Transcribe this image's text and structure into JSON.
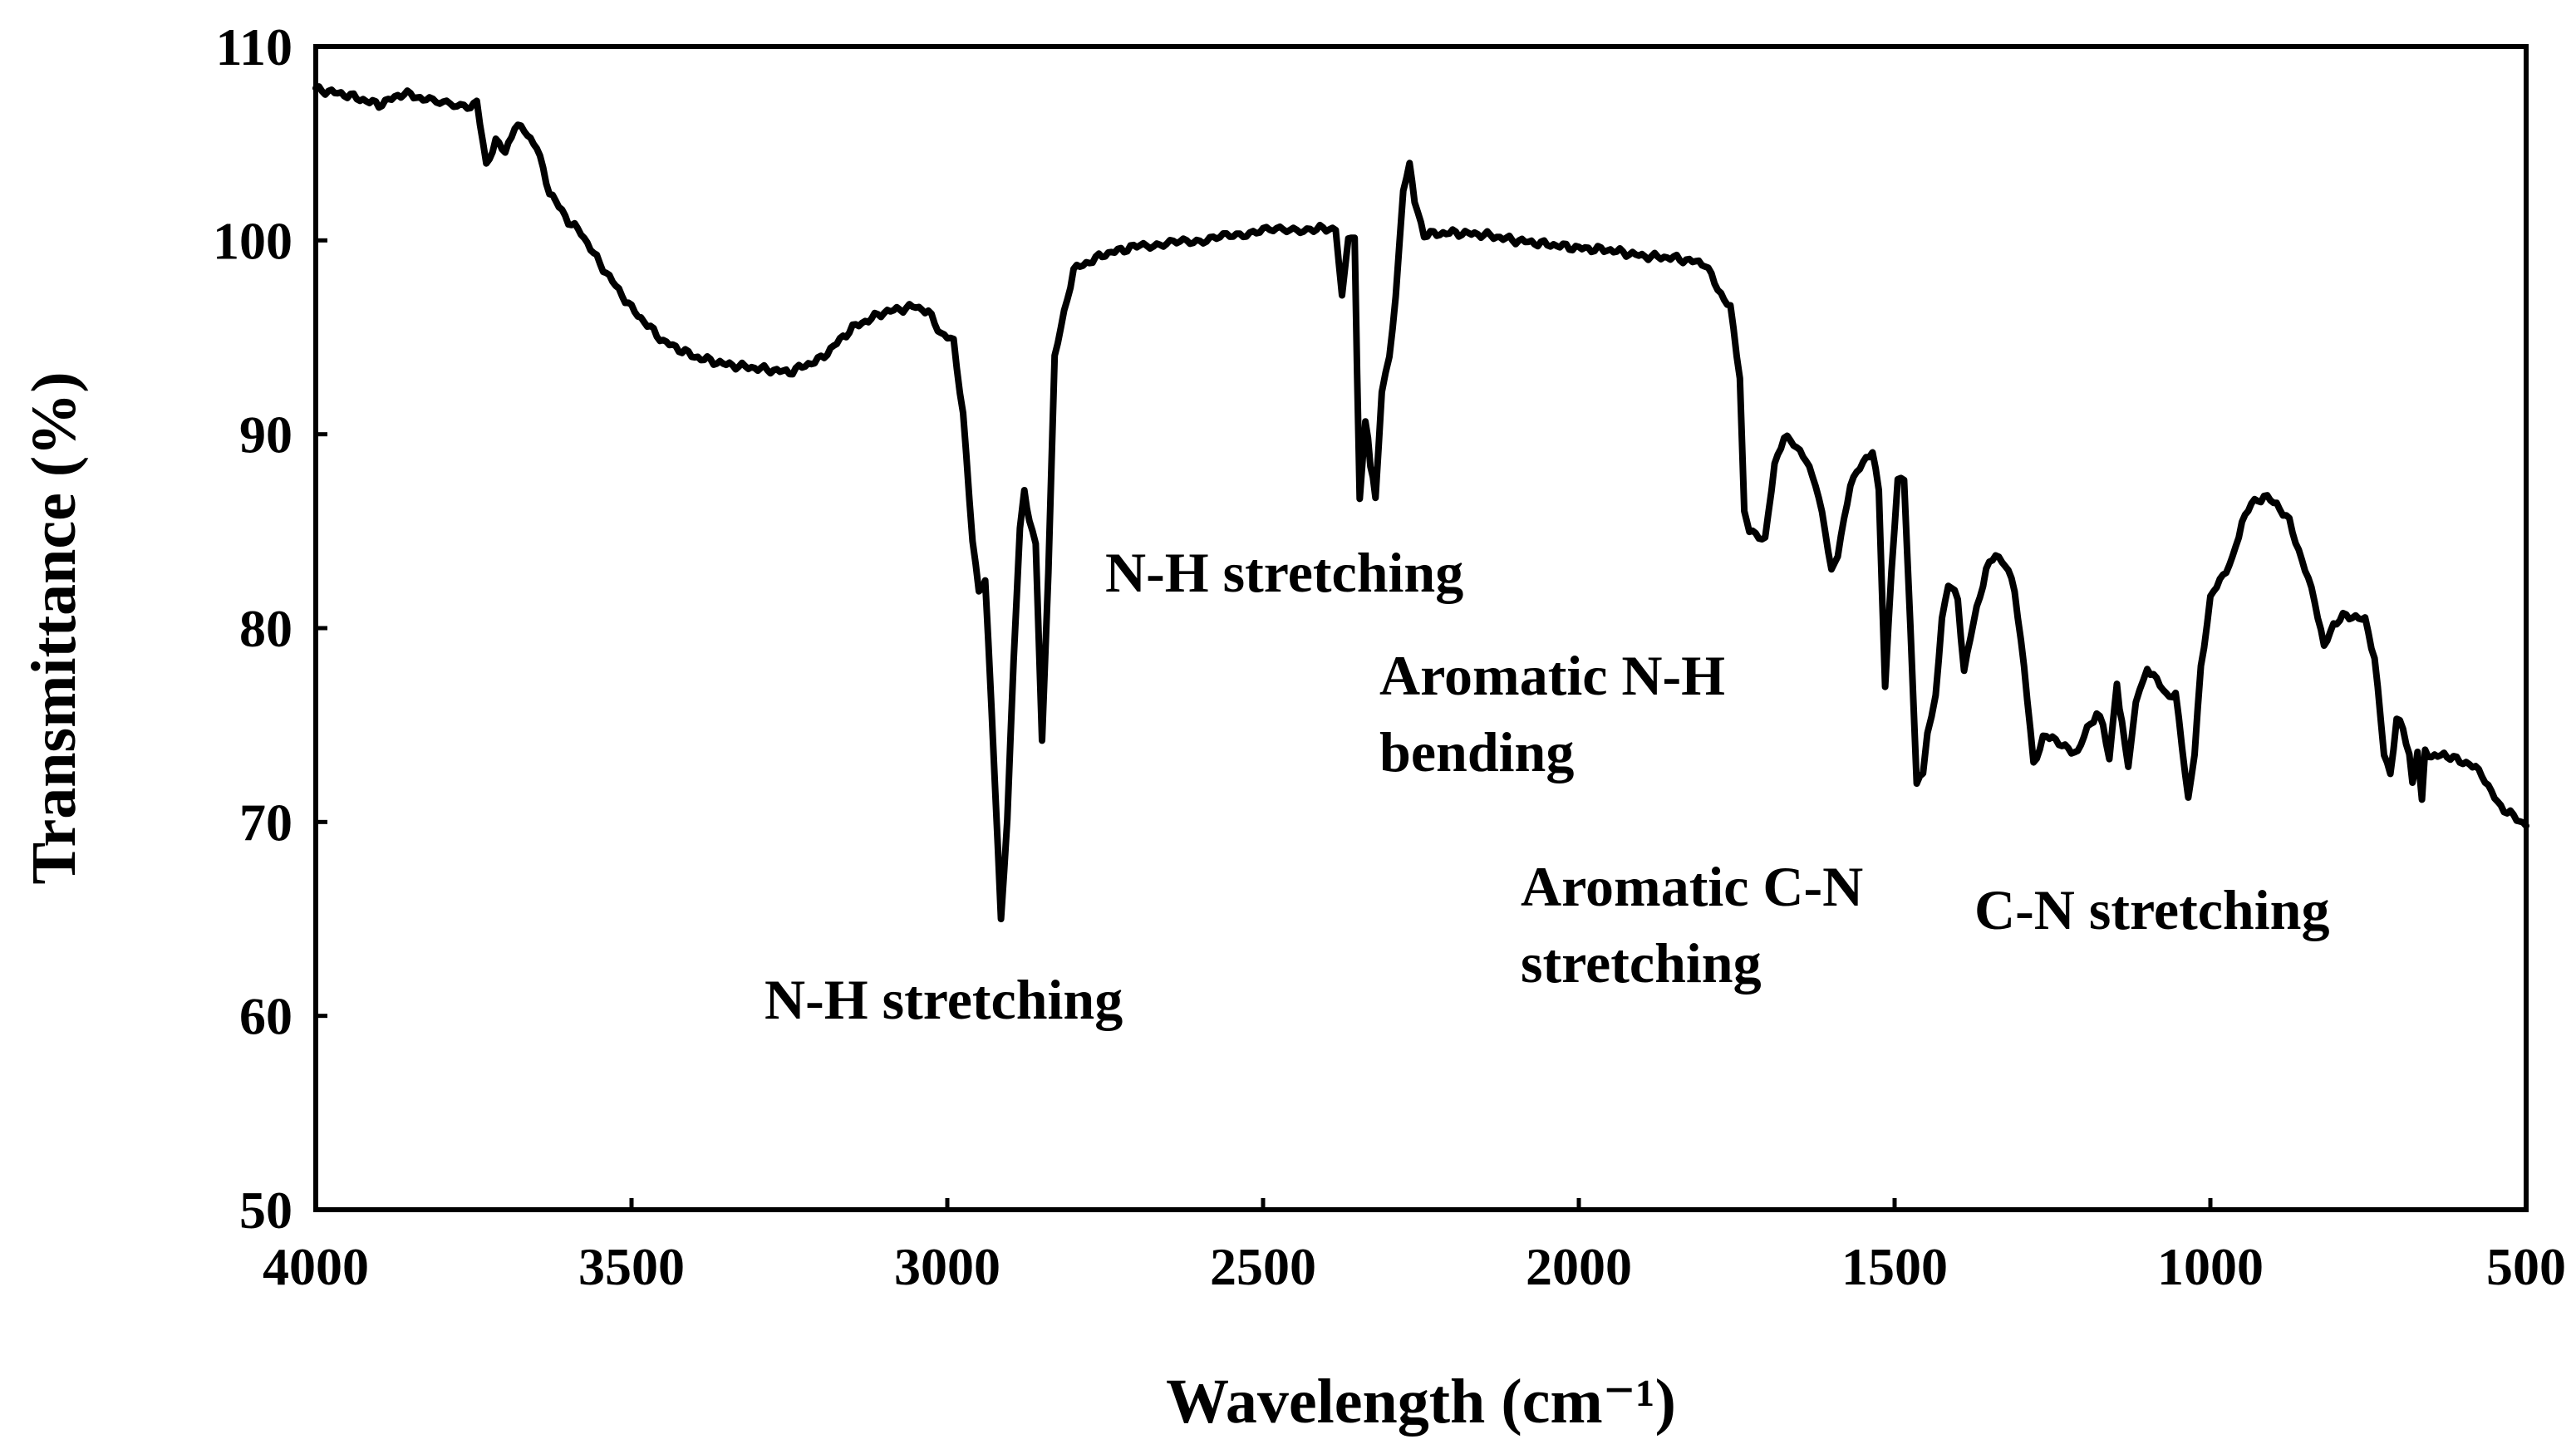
{
  "chart_data": {
    "type": "line",
    "title": "",
    "xlabel": "Wavelength (cm⁻¹)",
    "ylabel": "Transmittance (%)",
    "xlim": [
      4000,
      500
    ],
    "ylim": [
      50,
      110
    ],
    "x_ticks": [
      4000,
      3500,
      3000,
      2500,
      2000,
      1500,
      1000,
      500
    ],
    "y_ticks": [
      50,
      60,
      70,
      80,
      90,
      100,
      110
    ],
    "grid": false,
    "legend": "none",
    "colors": {
      "line": "#000000",
      "axis": "#000000",
      "background": "#ffffff"
    },
    "series": [
      {
        "name": "IR spectrum",
        "points": [
          [
            4000,
            107.8
          ],
          [
            3950,
            107.5
          ],
          [
            3900,
            107.0
          ],
          [
            3860,
            107.6
          ],
          [
            3820,
            107.2
          ],
          [
            3760,
            106.8
          ],
          [
            3745,
            107.2
          ],
          [
            3730,
            103.8
          ],
          [
            3715,
            105.2
          ],
          [
            3700,
            104.5
          ],
          [
            3685,
            105.9
          ],
          [
            3670,
            105.7
          ],
          [
            3650,
            104.8
          ],
          [
            3630,
            102.5
          ],
          [
            3600,
            101.0
          ],
          [
            3580,
            100.4
          ],
          [
            3550,
            98.8
          ],
          [
            3500,
            96.5
          ],
          [
            3450,
            94.8
          ],
          [
            3400,
            94.0
          ],
          [
            3350,
            93.6
          ],
          [
            3300,
            93.4
          ],
          [
            3250,
            93.2
          ],
          [
            3200,
            93.9
          ],
          [
            3150,
            95.5
          ],
          [
            3100,
            96.3
          ],
          [
            3050,
            96.6
          ],
          [
            3030,
            96.3
          ],
          [
            3010,
            95.2
          ],
          [
            2990,
            94.8
          ],
          [
            2975,
            91.0
          ],
          [
            2960,
            84.5
          ],
          [
            2950,
            82.0
          ],
          [
            2940,
            82.3
          ],
          [
            2930,
            76.0
          ],
          [
            2915,
            65.0
          ],
          [
            2905,
            70.0
          ],
          [
            2895,
            78.5
          ],
          [
            2885,
            85.0
          ],
          [
            2878,
            87.0
          ],
          [
            2870,
            85.5
          ],
          [
            2860,
            84.5
          ],
          [
            2850,
            74.0
          ],
          [
            2840,
            83.0
          ],
          [
            2830,
            94.0
          ],
          [
            2800,
            98.5
          ],
          [
            2750,
            99.3
          ],
          [
            2700,
            99.7
          ],
          [
            2600,
            100.0
          ],
          [
            2500,
            100.5
          ],
          [
            2420,
            100.6
          ],
          [
            2385,
            100.6
          ],
          [
            2375,
            97.0
          ],
          [
            2365,
            100.3
          ],
          [
            2355,
            100.0
          ],
          [
            2347,
            86.5
          ],
          [
            2338,
            90.8
          ],
          [
            2330,
            88.5
          ],
          [
            2322,
            86.8
          ],
          [
            2312,
            92.0
          ],
          [
            2300,
            94.0
          ],
          [
            2290,
            97.0
          ],
          [
            2278,
            102.5
          ],
          [
            2268,
            104.0
          ],
          [
            2260,
            102.0
          ],
          [
            2245,
            100.3
          ],
          [
            2200,
            100.4
          ],
          [
            2150,
            100.3
          ],
          [
            2100,
            100.0
          ],
          [
            2050,
            99.8
          ],
          [
            2000,
            99.6
          ],
          [
            1950,
            99.5
          ],
          [
            1900,
            99.2
          ],
          [
            1850,
            99.1
          ],
          [
            1800,
            98.8
          ],
          [
            1780,
            97.5
          ],
          [
            1760,
            96.5
          ],
          [
            1745,
            93.0
          ],
          [
            1738,
            86.0
          ],
          [
            1730,
            85.0
          ],
          [
            1715,
            84.8
          ],
          [
            1705,
            84.5
          ],
          [
            1690,
            88.5
          ],
          [
            1675,
            89.8
          ],
          [
            1660,
            89.6
          ],
          [
            1640,
            88.6
          ],
          [
            1625,
            87.5
          ],
          [
            1610,
            85.0
          ],
          [
            1600,
            83.0
          ],
          [
            1590,
            83.8
          ],
          [
            1580,
            85.5
          ],
          [
            1570,
            87.5
          ],
          [
            1550,
            88.5
          ],
          [
            1535,
            89.2
          ],
          [
            1525,
            87.0
          ],
          [
            1515,
            77.0
          ],
          [
            1505,
            83.0
          ],
          [
            1495,
            87.5
          ],
          [
            1485,
            87.8
          ],
          [
            1475,
            80.0
          ],
          [
            1465,
            72.0
          ],
          [
            1455,
            72.5
          ],
          [
            1448,
            74.5
          ],
          [
            1435,
            76.5
          ],
          [
            1425,
            80.5
          ],
          [
            1415,
            82.3
          ],
          [
            1400,
            81.5
          ],
          [
            1390,
            77.8
          ],
          [
            1380,
            79.5
          ],
          [
            1370,
            81.0
          ],
          [
            1355,
            83.0
          ],
          [
            1340,
            83.8
          ],
          [
            1325,
            83.3
          ],
          [
            1310,
            82.0
          ],
          [
            1295,
            78.0
          ],
          [
            1280,
            73.0
          ],
          [
            1265,
            74.3
          ],
          [
            1250,
            74.4
          ],
          [
            1230,
            73.8
          ],
          [
            1210,
            73.6
          ],
          [
            1195,
            74.8
          ],
          [
            1180,
            75.6
          ],
          [
            1170,
            75.0
          ],
          [
            1160,
            73.2
          ],
          [
            1148,
            77.0
          ],
          [
            1140,
            75.0
          ],
          [
            1130,
            73.0
          ],
          [
            1118,
            76.0
          ],
          [
            1100,
            78.0
          ],
          [
            1085,
            77.3
          ],
          [
            1070,
            76.6
          ],
          [
            1055,
            76.5
          ],
          [
            1045,
            74.0
          ],
          [
            1035,
            71.2
          ],
          [
            1025,
            73.5
          ],
          [
            1015,
            78.0
          ],
          [
            1000,
            81.5
          ],
          [
            985,
            82.5
          ],
          [
            965,
            83.5
          ],
          [
            950,
            85.5
          ],
          [
            935,
            86.4
          ],
          [
            915,
            86.8
          ],
          [
            895,
            86.4
          ],
          [
            875,
            85.5
          ],
          [
            855,
            83.5
          ],
          [
            835,
            81.5
          ],
          [
            820,
            79.0
          ],
          [
            805,
            80.2
          ],
          [
            790,
            80.6
          ],
          [
            770,
            80.6
          ],
          [
            755,
            80.4
          ],
          [
            740,
            78.5
          ],
          [
            725,
            73.5
          ],
          [
            715,
            72.5
          ],
          [
            705,
            75.3
          ],
          [
            695,
            74.8
          ],
          [
            685,
            73.5
          ],
          [
            680,
            72.0
          ],
          [
            672,
            73.5
          ],
          [
            665,
            71.0
          ],
          [
            660,
            73.8
          ],
          [
            650,
            73.3
          ],
          [
            630,
            73.5
          ],
          [
            610,
            73.2
          ],
          [
            590,
            73.0
          ],
          [
            570,
            72.5
          ],
          [
            560,
            71.8
          ],
          [
            545,
            71.0
          ],
          [
            530,
            70.5
          ],
          [
            515,
            70.2
          ],
          [
            500,
            69.8
          ]
        ]
      }
    ],
    "annotations": [
      {
        "id": "nh1",
        "lines": [
          "N-H stretching"
        ]
      },
      {
        "id": "nh2",
        "lines": [
          "N-H stretching"
        ]
      },
      {
        "id": "aromatic_nh",
        "lines": [
          "Aromatic N-H",
          "bending"
        ]
      },
      {
        "id": "aromatic_cn",
        "lines": [
          "Aromatic C-N",
          "stretching"
        ]
      },
      {
        "id": "cn",
        "lines": [
          "C-N stretching"
        ]
      }
    ]
  }
}
